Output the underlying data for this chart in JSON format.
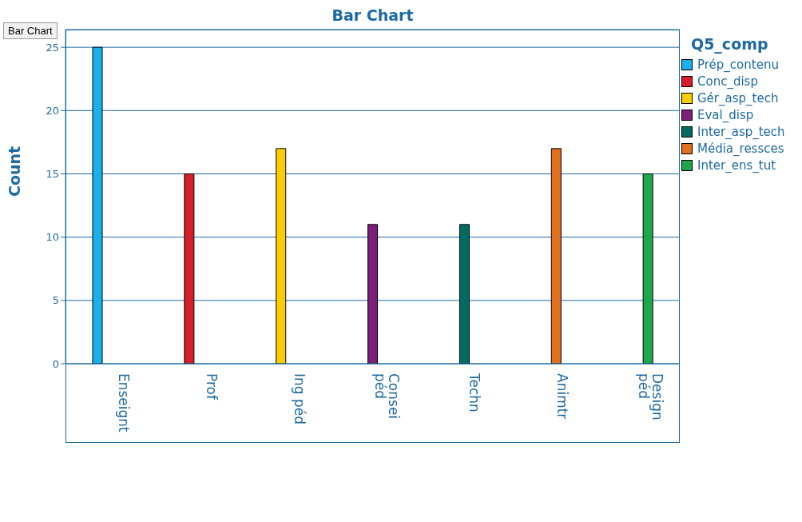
{
  "chart_data": {
    "type": "bar",
    "title": "Bar Chart",
    "ylabel": "Count",
    "legend_title": "Q5_comp",
    "annotations": [
      "Bar Chart"
    ],
    "categories": [
      "Enseignt",
      "Prof",
      "Ing péd",
      "Consei péd",
      "Techn",
      "Animtr",
      "Design péd"
    ],
    "series": [
      {
        "name": "Prép_contenu",
        "color": "#1ab0ec",
        "values": [
          25,
          null,
          null,
          null,
          null,
          null,
          null
        ]
      },
      {
        "name": "Conc_disp",
        "color": "#d51f2b",
        "values": [
          null,
          15,
          null,
          null,
          null,
          null,
          null
        ]
      },
      {
        "name": "Gér_asp_tech",
        "color": "#ffcc00",
        "values": [
          null,
          null,
          17,
          null,
          null,
          null,
          null
        ]
      },
      {
        "name": "Eval_disp",
        "color": "#7b1f7a",
        "values": [
          null,
          null,
          null,
          11,
          null,
          null,
          null
        ]
      },
      {
        "name": "Inter_asp_tech",
        "color": "#006b63",
        "values": [
          null,
          null,
          null,
          null,
          11,
          null,
          null
        ]
      },
      {
        "name": "Média_ressces",
        "color": "#e07020",
        "values": [
          null,
          null,
          null,
          null,
          null,
          17,
          null
        ]
      },
      {
        "name": "Inter_ens_tut",
        "color": "#1aa84a",
        "values": [
          null,
          null,
          null,
          null,
          null,
          null,
          15
        ]
      }
    ],
    "ylim": [
      0,
      26.4
    ],
    "yticks": [
      0,
      5,
      10,
      15,
      20,
      25
    ],
    "grid": "y",
    "legend": "top right"
  }
}
